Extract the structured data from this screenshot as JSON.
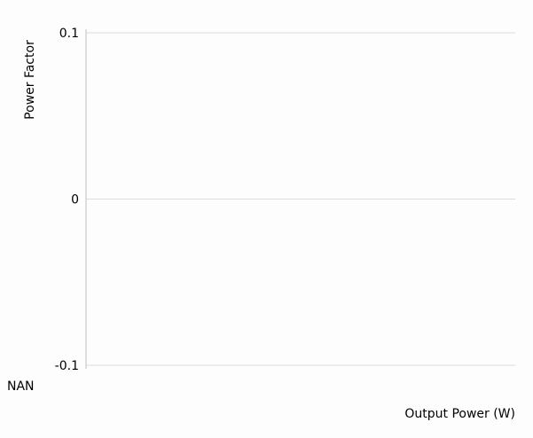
{
  "chart_data": {
    "type": "line",
    "title": "",
    "xlabel": "Output Power (W)",
    "ylabel": "Power Factor",
    "ylim": [
      -0.1,
      0.1
    ],
    "y_ticks": [
      {
        "value": 0.1,
        "label": "0.1"
      },
      {
        "value": 0,
        "label": "0"
      },
      {
        "value": -0.1,
        "label": "-0.1"
      }
    ],
    "x_ticks": [
      {
        "label": "NAN"
      }
    ],
    "series": [],
    "grid": true,
    "colors": {
      "grid": "#dcdcdc",
      "axis": "#bfbfbf",
      "text": "#000000"
    }
  }
}
